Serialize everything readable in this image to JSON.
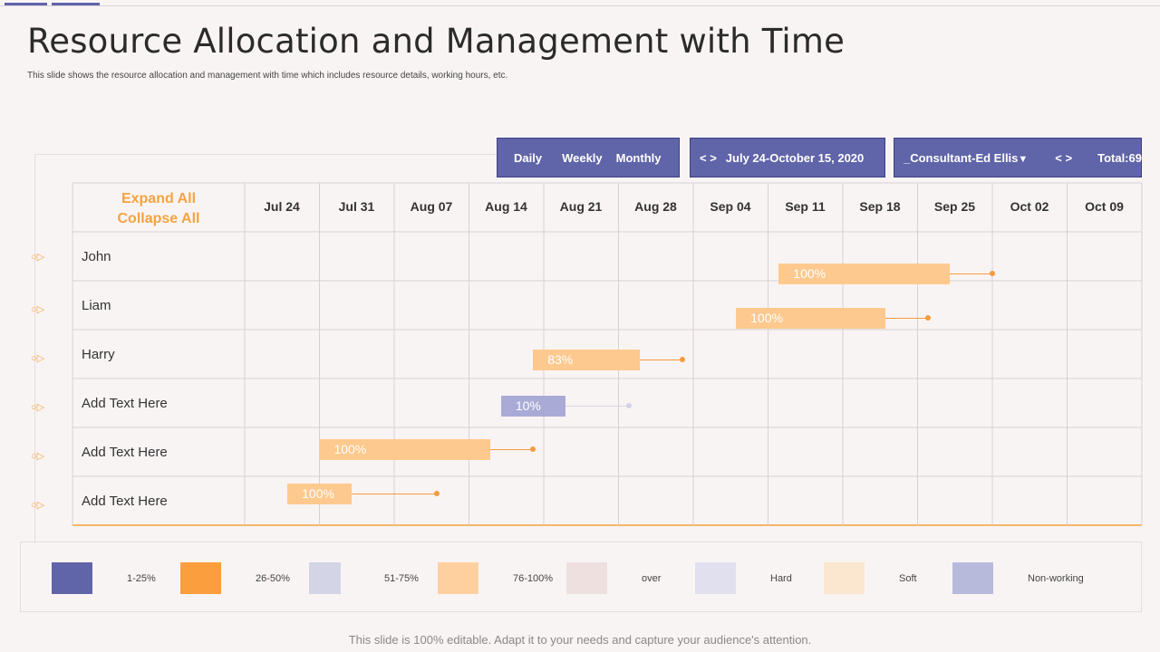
{
  "page": {
    "title": "Resource Allocation and Management with Time",
    "subtitle": "This slide shows the resource allocation and management  with time which includes resource details, working hours, etc.",
    "footer": "This slide is 100% editable. Adapt it to your needs and capture your audience's attention."
  },
  "toolbar": {
    "view_tabs": [
      "Daily",
      "Weekly",
      "Monthly"
    ],
    "range_nav": "< >",
    "range_label": "July 24-October 15, 2020",
    "consultant_label": "_Consultant-Ed Ellis",
    "consultant_caret": "▼",
    "nav_arrows": "< >",
    "total_label": "Total:69"
  },
  "table": {
    "expand_label": "Expand All",
    "collapse_label": "Collapse All",
    "row_icon": "○▷"
  },
  "chart_data": {
    "type": "gantt",
    "title": "",
    "x_axis": {
      "type": "date",
      "categories": [
        "Jul 24",
        "Jul 31",
        "Aug 07",
        "Aug 14",
        "Aug 21",
        "Aug 28",
        "Sep 04",
        "Sep 11",
        "Sep 18",
        "Sep 25",
        "Oct 02",
        "Oct 09"
      ]
    },
    "rows": [
      "John",
      "Liam",
      "Harry",
      "Add Text Here",
      "Add Text Here",
      "Add Text Here"
    ],
    "tasks": [
      {
        "row": 0,
        "label": "100%",
        "start": "2020-09-12",
        "end": "2020-09-28",
        "end_marker": "2020-10-02",
        "category": "76-100%"
      },
      {
        "row": 1,
        "label": "100%",
        "start": "2020-09-08",
        "end": "2020-09-22",
        "end_marker": "2020-09-26",
        "category": "76-100%"
      },
      {
        "row": 2,
        "label": "83%",
        "start": "2020-08-20",
        "end": "2020-08-30",
        "end_marker": "2020-09-03",
        "category": "76-100%"
      },
      {
        "row": 3,
        "label": "10%",
        "start": "2020-08-17",
        "end": "2020-08-23",
        "end_marker": "2020-08-29",
        "category": "Non-working"
      },
      {
        "row": 4,
        "label": "100%",
        "start": "2020-07-31",
        "end": "2020-08-16",
        "end_marker": "2020-08-20",
        "category": "76-100%"
      },
      {
        "row": 5,
        "label": "100%",
        "start": "2020-07-28",
        "end": "2020-08-03",
        "end_marker": "2020-08-11",
        "category": "76-100%"
      }
    ],
    "legend": [
      {
        "label": "1-25%",
        "color": "#6064a8"
      },
      {
        "label": "26-50%",
        "color": "#fb9f3e"
      },
      {
        "label": "51-75%",
        "color": "#d3d4e6"
      },
      {
        "label": "76-100%",
        "color": "#fed0a0"
      },
      {
        "label": "over",
        "color": "#ede0de"
      },
      {
        "label": "Hard",
        "color": "#e0e0ee"
      },
      {
        "label": "Soft",
        "color": "#fbe6cf"
      },
      {
        "label": "Non-working",
        "color": "#b8badb"
      }
    ],
    "legend_position": "bottom",
    "grid": true
  },
  "colors": {
    "accent": "#6064a8",
    "header_text": "#f4a340",
    "bar_full": "#fec98e",
    "bar_nonworking": "#a9abd6",
    "marker_full": "#f59b3f",
    "marker_nonworking": "#d3d4e6"
  }
}
